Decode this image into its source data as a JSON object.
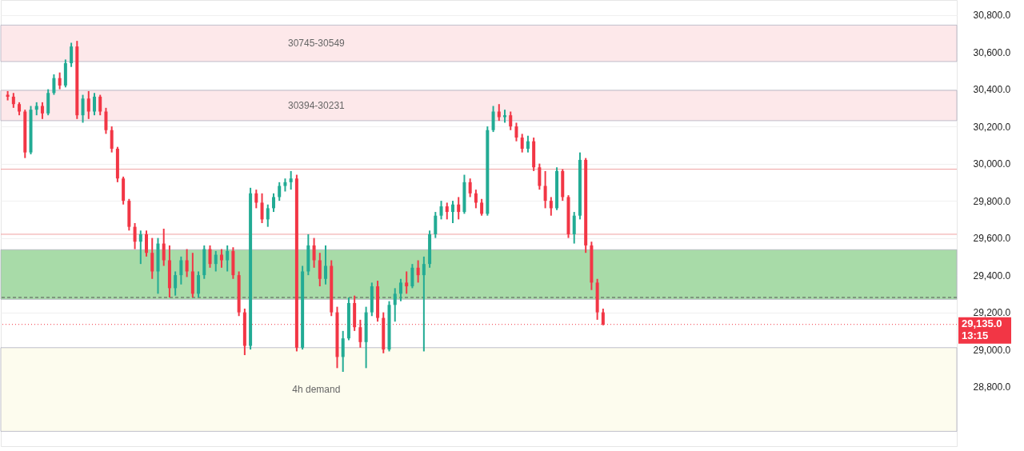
{
  "chart_data": {
    "type": "candlestick",
    "categories": [
      null,
      null,
      null,
      null,
      null,
      null,
      null,
      null,
      null,
      null,
      null,
      null,
      null,
      null,
      null,
      null,
      null,
      null,
      null,
      null,
      null,
      null,
      null,
      null,
      null,
      null,
      null,
      null,
      null,
      null,
      null,
      null,
      null,
      null,
      null,
      null,
      null,
      null,
      null,
      null,
      null,
      null,
      null,
      null,
      null,
      null,
      null,
      null,
      null,
      null,
      null,
      null,
      null,
      null,
      null,
      null,
      null,
      null,
      null,
      null,
      null,
      null,
      null,
      null,
      null,
      null,
      null,
      null,
      null,
      null,
      null,
      null,
      null,
      null,
      null,
      null,
      null,
      null,
      null,
      null,
      null,
      null,
      null,
      null,
      null,
      null,
      null,
      null,
      null,
      null,
      null,
      null,
      null,
      null,
      null,
      null,
      null,
      null,
      null,
      null,
      null,
      null,
      null,
      null,
      null,
      null,
      null,
      null,
      null,
      null,
      null,
      null,
      null,
      null,
      null,
      null,
      null,
      null,
      null,
      null,
      null,
      null,
      null,
      null,
      null,
      null,
      null,
      null,
      null,
      null,
      null,
      null,
      null,
      null,
      null,
      null,
      null,
      null,
      null,
      null,
      null,
      null,
      null,
      null,
      null,
      null,
      null,
      null,
      null,
      null,
      null,
      null,
      null,
      null,
      null,
      null,
      null,
      null,
      null,
      null,
      null,
      null,
      null,
      null
    ],
    "ohlc": [
      [
        30370,
        30390,
        30340,
        30360
      ],
      [
        30360,
        30380,
        30300,
        30320
      ],
      [
        30320,
        30330,
        30260,
        30280
      ],
      [
        30280,
        30290,
        30030,
        30060
      ],
      [
        30060,
        30310,
        30050,
        30290
      ],
      [
        30290,
        30330,
        30260,
        30310
      ],
      [
        30310,
        30330,
        30240,
        30270
      ],
      [
        30270,
        30400,
        30260,
        30380
      ],
      [
        30380,
        30480,
        30370,
        30460
      ],
      [
        30460,
        30490,
        30400,
        30420
      ],
      [
        30420,
        30560,
        30410,
        30540
      ],
      [
        30540,
        30650,
        30520,
        30630
      ],
      [
        30630,
        30660,
        30240,
        30260
      ],
      [
        30260,
        30370,
        30220,
        30350
      ],
      [
        30350,
        30390,
        30240,
        30280
      ],
      [
        30280,
        30380,
        30260,
        30360
      ],
      [
        30360,
        30370,
        30260,
        30280
      ],
      [
        30280,
        30300,
        30160,
        30180
      ],
      [
        30180,
        30200,
        30060,
        30080
      ],
      [
        30080,
        30090,
        29900,
        29920
      ],
      [
        29920,
        29930,
        29780,
        29800
      ],
      [
        29800,
        29810,
        29640,
        29660
      ],
      [
        29660,
        29680,
        29540,
        29580
      ],
      [
        29580,
        29640,
        29460,
        29620
      ],
      [
        29620,
        29640,
        29500,
        29520
      ],
      [
        29520,
        29600,
        29380,
        29420
      ],
      [
        29420,
        29600,
        29300,
        29570
      ],
      [
        29570,
        29650,
        29450,
        29480
      ],
      [
        29480,
        29560,
        29280,
        29330
      ],
      [
        29330,
        29420,
        29290,
        29400
      ],
      [
        29400,
        29500,
        29350,
        29480
      ],
      [
        29480,
        29540,
        29390,
        29420
      ],
      [
        29420,
        29520,
        29280,
        29300
      ],
      [
        29300,
        29420,
        29280,
        29400
      ],
      [
        29400,
        29560,
        29380,
        29540
      ],
      [
        29540,
        29560,
        29440,
        29460
      ],
      [
        29460,
        29530,
        29420,
        29510
      ],
      [
        29510,
        29540,
        29440,
        29480
      ],
      [
        29480,
        29560,
        29420,
        29530
      ],
      [
        29530,
        29550,
        29380,
        29400
      ],
      [
        29400,
        29420,
        29180,
        29200
      ],
      [
        29200,
        29220,
        28970,
        29020
      ],
      [
        29020,
        29870,
        29000,
        29840
      ],
      [
        29840,
        29860,
        29760,
        29790
      ],
      [
        29790,
        29840,
        29680,
        29700
      ],
      [
        29700,
        29780,
        29660,
        29760
      ],
      [
        29760,
        29840,
        29740,
        29820
      ],
      [
        29820,
        29900,
        29800,
        29880
      ],
      [
        29880,
        29920,
        29850,
        29900
      ],
      [
        29900,
        29960,
        29860,
        29920
      ],
      [
        29920,
        29940,
        28990,
        29010
      ],
      [
        29010,
        29450,
        29000,
        29420
      ],
      [
        29420,
        29620,
        29400,
        29560
      ],
      [
        29560,
        29600,
        29440,
        29480
      ],
      [
        29480,
        29520,
        29340,
        29380
      ],
      [
        29380,
        29560,
        29350,
        29450
      ],
      [
        29450,
        29480,
        29180,
        29200
      ],
      [
        29200,
        29230,
        28900,
        28960
      ],
      [
        28960,
        29100,
        28880,
        29060
      ],
      [
        29060,
        29280,
        29050,
        29250
      ],
      [
        29250,
        29290,
        29100,
        29120
      ],
      [
        29120,
        29160,
        29010,
        29040
      ],
      [
        29040,
        29230,
        28900,
        29200
      ],
      [
        29200,
        29360,
        29180,
        29340
      ],
      [
        29340,
        29370,
        29150,
        29170
      ],
      [
        29170,
        29200,
        28980,
        29000
      ],
      [
        29000,
        29260,
        28990,
        29240
      ],
      [
        29240,
        29330,
        29150,
        29300
      ],
      [
        29300,
        29380,
        29260,
        29360
      ],
      [
        29360,
        29420,
        29300,
        29340
      ],
      [
        29340,
        29460,
        29330,
        29440
      ],
      [
        29440,
        29480,
        29360,
        29400
      ],
      [
        29400,
        29500,
        28990,
        29460
      ],
      [
        29460,
        29640,
        29440,
        29620
      ],
      [
        29620,
        29740,
        29600,
        29720
      ],
      [
        29720,
        29800,
        29700,
        29770
      ],
      [
        29770,
        29790,
        29700,
        29740
      ],
      [
        29740,
        29800,
        29680,
        29780
      ],
      [
        29780,
        29820,
        29700,
        29740
      ],
      [
        29740,
        29940,
        29730,
        29900
      ],
      [
        29900,
        29920,
        29820,
        29840
      ],
      [
        29840,
        29860,
        29760,
        29790
      ],
      [
        29790,
        29810,
        29720,
        29730
      ],
      [
        29730,
        30200,
        29720,
        30180
      ],
      [
        30180,
        30310,
        30170,
        30280
      ],
      [
        30280,
        30320,
        30230,
        30250
      ],
      [
        30250,
        30290,
        30220,
        30260
      ],
      [
        30260,
        30280,
        30180,
        30200
      ],
      [
        30200,
        30220,
        30120,
        30140
      ],
      [
        30140,
        30160,
        30060,
        30080
      ],
      [
        30080,
        30150,
        30060,
        30120
      ],
      [
        30120,
        30140,
        29960,
        29980
      ],
      [
        29980,
        30000,
        29860,
        29880
      ],
      [
        29880,
        29960,
        29760,
        29800
      ],
      [
        29800,
        29820,
        29720,
        29760
      ],
      [
        29760,
        29980,
        29750,
        29960
      ],
      [
        29960,
        29970,
        29800,
        29820
      ],
      [
        29820,
        29830,
        29600,
        29620
      ],
      [
        29620,
        29740,
        29570,
        29720
      ],
      [
        29720,
        30060,
        29700,
        30020
      ],
      [
        30020,
        30030,
        29520,
        29560
      ],
      [
        29560,
        29580,
        29320,
        29360
      ],
      [
        29360,
        29380,
        29160,
        29200
      ],
      [
        29200,
        29220,
        29130,
        29135
      ],
      null,
      null,
      null,
      null,
      null,
      null,
      null,
      null,
      null,
      null,
      null,
      null,
      null,
      null,
      null,
      null,
      null,
      null,
      null,
      null,
      null,
      null,
      null,
      null,
      null,
      null,
      null,
      null,
      null,
      null,
      null,
      null,
      null,
      null,
      null,
      null,
      null,
      null,
      null,
      null,
      null,
      null,
      null,
      null,
      null,
      null,
      null,
      null,
      null,
      null,
      null,
      null,
      null,
      null,
      null,
      null,
      null,
      null,
      null,
      null
    ],
    "ylim": [
      28480,
      30880
    ],
    "yticks": [
      {
        "value": 28800,
        "label": "28,800.0"
      },
      {
        "value": 29000,
        "label": "29,000.0"
      },
      {
        "value": 29200,
        "label": "29,200.0"
      },
      {
        "value": 29400,
        "label": "29,400.0"
      },
      {
        "value": 29600,
        "label": "29,600.0"
      },
      {
        "value": 29800,
        "label": "29,800.0"
      },
      {
        "value": 30000,
        "label": "30,000.0"
      },
      {
        "value": 30200,
        "label": "30,200.0"
      },
      {
        "value": 30400,
        "label": "30,400.0"
      },
      {
        "value": 30600,
        "label": "30,600.0"
      },
      {
        "value": 30800,
        "label": "30,800.0"
      }
    ],
    "grid": "y",
    "tick_labels": "y",
    "bands": [
      {
        "axis": "y",
        "from": 30549,
        "to": 30745,
        "label": "30745-30549",
        "color": "#fde8ea"
      },
      {
        "axis": "y",
        "from": 30231,
        "to": 30394,
        "label": "30394-30231",
        "color": "#fde8ea"
      },
      {
        "axis": "y",
        "from": 29270,
        "to": 29537,
        "label": null,
        "color": "#a8dba8"
      },
      {
        "axis": "y",
        "from": 28560,
        "to": 29010,
        "label": "4h demand",
        "color": "#fdfcee"
      }
    ],
    "ref_lines": [
      {
        "axis": "y",
        "value": 29970,
        "label": null,
        "color": "#f0a0a0",
        "line_style": "solid"
      },
      {
        "axis": "y",
        "value": 29620,
        "label": null,
        "color": "#f0a0a0",
        "line_style": "solid"
      },
      {
        "axis": "y",
        "value": 29280,
        "label": null,
        "color": "#555555",
        "line_style": "dashed"
      },
      {
        "axis": "y",
        "value": 29135,
        "label": "29,135.0 13:15",
        "color": "#f23645",
        "line_style": "dotted"
      }
    ]
  }
}
